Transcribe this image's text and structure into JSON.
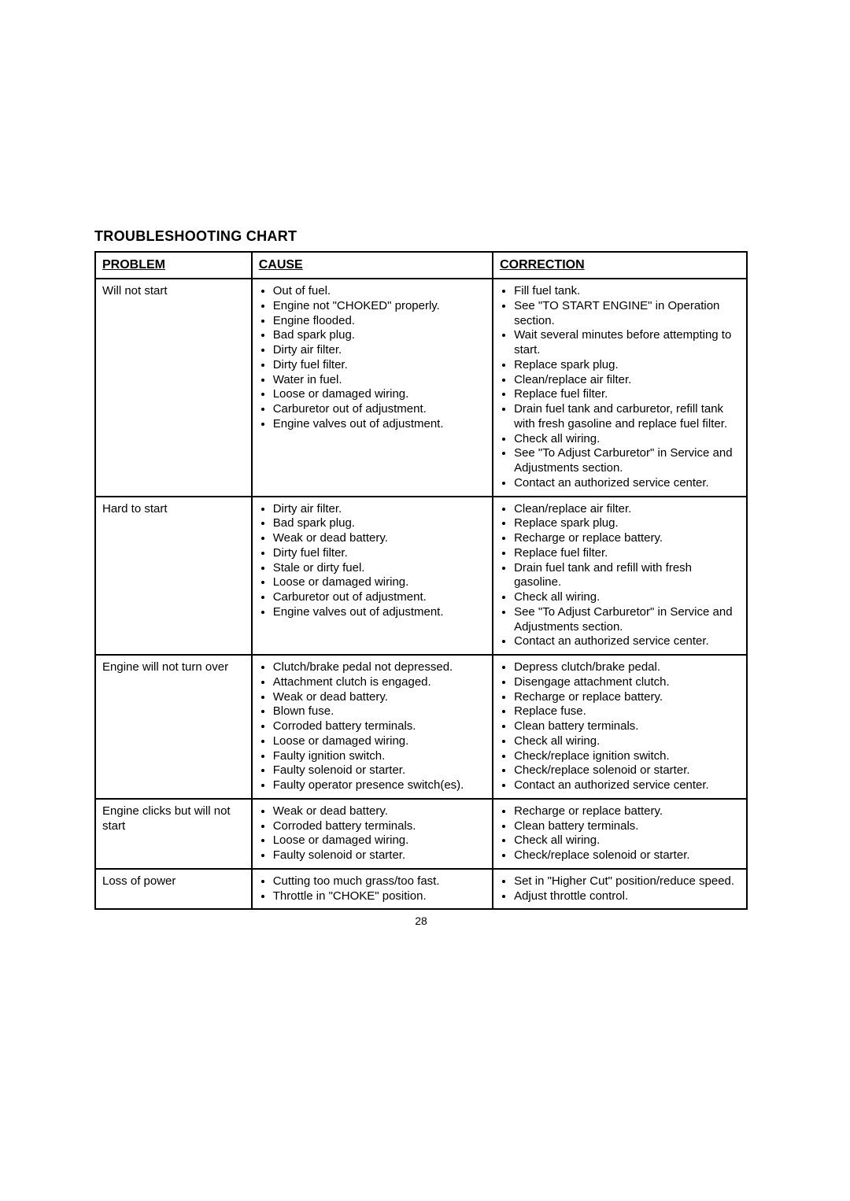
{
  "title": "TROUBLESHOOTING CHART",
  "headers": {
    "c1": "PROBLEM",
    "c2": "CAUSE",
    "c3": "CORRECTION"
  },
  "page_number": "28",
  "rows": [
    {
      "problem": "Will not start",
      "causes": [
        "Out of fuel.",
        "Engine not \"CHOKED\" properly.",
        "Engine flooded.",
        "Bad spark plug.",
        "Dirty air filter.",
        "Dirty fuel filter.",
        "Water in fuel.",
        "Loose or damaged wiring.",
        "Carburetor out of adjustment.",
        "Engine valves out of adjustment."
      ],
      "corrections": [
        "Fill fuel tank.",
        "See \"TO START ENGINE\" in Operation section.",
        "Wait several minutes before attempting to start.",
        "Replace spark plug.",
        "Clean/replace air filter.",
        "Replace fuel filter.",
        "Drain fuel tank and carburetor, refill tank with fresh gasoline and replace fuel filter.",
        "Check all wiring.",
        "See \"To Adjust Carburetor\" in Service and Adjustments section.",
        "Contact an authorized service center."
      ]
    },
    {
      "problem": "Hard to start",
      "causes": [
        "Dirty air filter.",
        "Bad spark plug.",
        "Weak or dead battery.",
        "Dirty fuel filter.",
        "Stale or dirty fuel.",
        "Loose or damaged wiring.",
        "Carburetor out of adjustment.",
        "Engine valves out of adjustment."
      ],
      "corrections": [
        "Clean/replace air filter.",
        "Replace spark plug.",
        "Recharge or replace battery.",
        "Replace fuel filter.",
        "Drain fuel tank and refill with fresh gasoline.",
        "Check all wiring.",
        "See \"To Adjust Carburetor\" in Service and Adjustments section.",
        "Contact an authorized service center."
      ]
    },
    {
      "problem": "Engine will not turn over",
      "causes": [
        "Clutch/brake pedal not depressed.",
        "Attachment clutch is engaged.",
        "Weak or dead battery.",
        "Blown fuse.",
        "Corroded battery terminals.",
        "Loose or damaged wiring.",
        "Faulty ignition switch.",
        "Faulty solenoid or starter.",
        "Faulty operator presence switch(es)."
      ],
      "corrections": [
        "Depress clutch/brake pedal.",
        "Disengage attachment clutch.",
        "Recharge or replace battery.",
        "Replace fuse.",
        "Clean battery terminals.",
        "Check all wiring.",
        "Check/replace ignition switch.",
        "Check/replace solenoid or starter.",
        "Contact an authorized service center."
      ]
    },
    {
      "problem": "Engine clicks but will not start",
      "causes": [
        "Weak or dead battery.",
        "Corroded battery terminals.",
        "Loose or damaged wiring.",
        "Faulty solenoid or starter."
      ],
      "corrections": [
        "Recharge or replace battery.",
        "Clean battery terminals.",
        "Check all wiring.",
        "Check/replace solenoid or starter."
      ]
    },
    {
      "problem": "Loss of power",
      "causes": [
        "Cutting too much grass/too fast.",
        "Throttle in \"CHOKE\" position."
      ],
      "corrections": [
        "Set in \"Higher Cut\" position/reduce speed.",
        "Adjust throttle control."
      ]
    }
  ]
}
